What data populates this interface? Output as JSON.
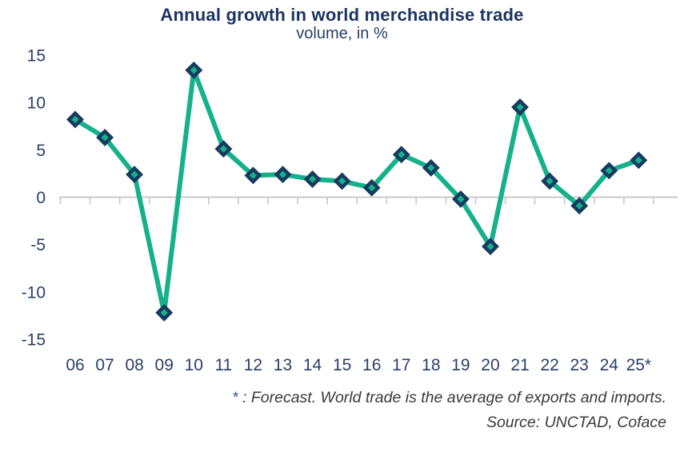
{
  "chart": {
    "title": "Annual growth in world merchandise trade",
    "subtitle": "volume, in %",
    "footnote_asterisk": "*",
    "footnote_text": " : Forecast. World trade is the average of exports and imports.",
    "source": "Source: UNCTAD, Coface"
  },
  "chart_data": {
    "type": "line",
    "title": "Annual growth in world merchandise trade",
    "subtitle": "volume, in %",
    "categories": [
      "06",
      "07",
      "08",
      "09",
      "10",
      "11",
      "12",
      "13",
      "14",
      "15",
      "16",
      "17",
      "18",
      "19",
      "20",
      "21",
      "22",
      "23",
      "24",
      "25*"
    ],
    "values": [
      8.2,
      6.3,
      2.4,
      -12.2,
      13.4,
      5.1,
      2.3,
      2.4,
      1.9,
      1.7,
      1.0,
      4.5,
      3.1,
      -0.2,
      -5.2,
      9.5,
      1.7,
      -0.9,
      2.8,
      3.9
    ],
    "xlabel": "",
    "ylabel": "",
    "ylim": [
      -15,
      15
    ],
    "yticks": [
      15,
      10,
      5,
      0,
      -5,
      -10,
      -15
    ],
    "grid": "zero-line-only",
    "legend": "none",
    "line_color": "#15b18b",
    "marker_shape": "diamond",
    "marker_border_color": "#173a60",
    "marker_fill_color": "#15b18b",
    "axis_line_color": "#c8c8c8",
    "tick_label_color": "#2b3e65"
  }
}
